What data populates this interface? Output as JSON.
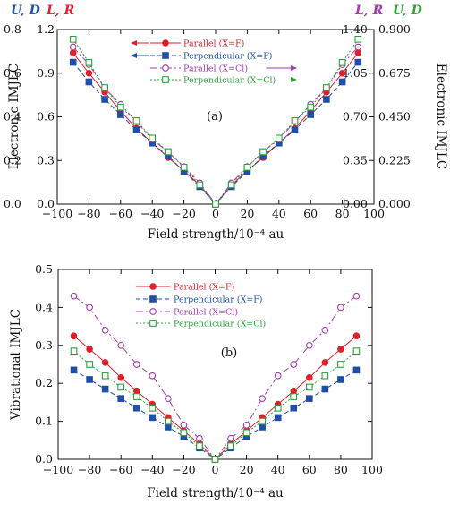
{
  "colors": {
    "parallel_f": "#e0202a",
    "perpendicular_f": "#1f4fa8",
    "parallel_cl": "#a23ab0",
    "perpendicular_cl": "#2aa33a",
    "axis": "#111111"
  },
  "top_headers": {
    "left_ud": "U, D",
    "left_lr": "L, R",
    "right_lr": "L, R",
    "right_ud": "U, D"
  },
  "chart_data": [
    {
      "type": "line",
      "panel_label": "(a)",
      "xlabel": "Field strength/10⁻⁴ au",
      "ylabel_left": "Electronic IMJLC",
      "ylabel_right": "Electronic IMJLC",
      "xlim": [
        -100,
        100
      ],
      "xticks": [
        "−100",
        "−80",
        "−60",
        "−40",
        "−20",
        "0",
        "20",
        "40",
        "60",
        "80",
        "100"
      ],
      "axis_ud_left": {
        "ylim": [
          0,
          0.8
        ],
        "ticks": [
          "0.0",
          "0.2",
          "0.4",
          "0.6",
          "0.8"
        ]
      },
      "axis_lr_left": {
        "ylim": [
          0,
          1.2
        ],
        "ticks": [
          "0.0",
          "0.3",
          "0.6",
          "0.9",
          "1.2"
        ]
      },
      "axis_lr_right": {
        "ylim": [
          0,
          1.4
        ],
        "ticks": [
          "0.00",
          "0.35",
          "0.70",
          "1.05",
          "1.40"
        ]
      },
      "axis_ud_right": {
        "ylim": [
          0,
          0.9
        ],
        "ticks": [
          "0.000",
          "0.225",
          "0.450",
          "0.675",
          "0.900"
        ]
      },
      "legend_position": "top-center",
      "x": [
        -90,
        -80,
        -70,
        -60,
        -50,
        -40,
        -30,
        -20,
        -10,
        0,
        10,
        20,
        30,
        40,
        50,
        60,
        70,
        80,
        90
      ],
      "series": [
        {
          "name": "Parallel (X=F)",
          "color_key": "parallel_f",
          "marker": "filled-circle",
          "dash": "solid",
          "axis": "lr_left",
          "values": [
            1.04,
            0.9,
            0.77,
            0.64,
            0.52,
            0.42,
            0.32,
            0.23,
            0.13,
            0.0,
            0.13,
            0.23,
            0.32,
            0.42,
            0.52,
            0.64,
            0.77,
            0.9,
            1.04
          ]
        },
        {
          "name": "Perpendicular (X=F)",
          "color_key": "perpendicular_f",
          "marker": "filled-square",
          "dash": "dashed",
          "axis": "ud_left",
          "values": [
            0.65,
            0.56,
            0.48,
            0.41,
            0.34,
            0.28,
            0.22,
            0.15,
            0.08,
            0.0,
            0.08,
            0.15,
            0.22,
            0.28,
            0.34,
            0.41,
            0.48,
            0.56,
            0.65
          ]
        },
        {
          "name": "Parallel (X=Cl)",
          "color_key": "parallel_cl",
          "marker": "open-circle",
          "dash": "dashdot",
          "axis": "lr_right",
          "values": [
            1.26,
            1.12,
            0.93,
            0.8,
            0.66,
            0.52,
            0.42,
            0.3,
            0.17,
            0.0,
            0.17,
            0.3,
            0.42,
            0.52,
            0.66,
            0.8,
            0.93,
            1.12,
            1.26
          ]
        },
        {
          "name": "Perpendicular (X=Cl)",
          "color_key": "perpendicular_cl",
          "marker": "open-square",
          "dash": "dotted",
          "axis": "ud_right",
          "values": [
            0.85,
            0.73,
            0.6,
            0.5,
            0.43,
            0.34,
            0.27,
            0.19,
            0.1,
            0.0,
            0.1,
            0.19,
            0.27,
            0.34,
            0.43,
            0.5,
            0.6,
            0.73,
            0.85
          ]
        }
      ]
    },
    {
      "type": "line",
      "panel_label": "(b)",
      "xlabel": "Field strength/10⁻⁴ au",
      "ylabel": "Vibrational IMJLC",
      "xlim": [
        -100,
        100
      ],
      "ylim": [
        0,
        0.5
      ],
      "xticks": [
        "−100",
        "−80",
        "−60",
        "−40",
        "−20",
        "0",
        "20",
        "40",
        "60",
        "80",
        "100"
      ],
      "yticks": [
        "0.0",
        "0.1",
        "0.2",
        "0.3",
        "0.4",
        "0.5"
      ],
      "legend_position": "top-center",
      "x": [
        -90,
        -80,
        -70,
        -60,
        -50,
        -40,
        -30,
        -20,
        -10,
        0,
        10,
        20,
        30,
        40,
        50,
        60,
        70,
        80,
        90
      ],
      "series": [
        {
          "name": "Parallel (X=F)",
          "color_key": "parallel_f",
          "marker": "filled-circle",
          "dash": "solid",
          "values": [
            0.325,
            0.29,
            0.255,
            0.215,
            0.18,
            0.145,
            0.11,
            0.075,
            0.04,
            0.0,
            0.04,
            0.075,
            0.11,
            0.145,
            0.18,
            0.215,
            0.255,
            0.29,
            0.325
          ]
        },
        {
          "name": "Perpendicular (X=F)",
          "color_key": "perpendicular_f",
          "marker": "filled-square",
          "dash": "dashed",
          "values": [
            0.235,
            0.21,
            0.185,
            0.16,
            0.135,
            0.11,
            0.085,
            0.06,
            0.03,
            0.0,
            0.03,
            0.06,
            0.085,
            0.11,
            0.135,
            0.16,
            0.185,
            0.21,
            0.235
          ]
        },
        {
          "name": "Parallel (X=Cl)",
          "color_key": "parallel_cl",
          "marker": "open-circle",
          "dash": "dashdot",
          "values": [
            0.43,
            0.4,
            0.34,
            0.3,
            0.25,
            0.22,
            0.16,
            0.09,
            0.055,
            0.0,
            0.055,
            0.09,
            0.16,
            0.22,
            0.25,
            0.3,
            0.34,
            0.4,
            0.43
          ]
        },
        {
          "name": "Perpendicular (X=Cl)",
          "color_key": "perpendicular_cl",
          "marker": "open-square",
          "dash": "dotted",
          "values": [
            0.285,
            0.25,
            0.22,
            0.19,
            0.165,
            0.135,
            0.1,
            0.07,
            0.035,
            0.0,
            0.035,
            0.07,
            0.1,
            0.135,
            0.165,
            0.19,
            0.22,
            0.25,
            0.285
          ]
        }
      ]
    }
  ]
}
